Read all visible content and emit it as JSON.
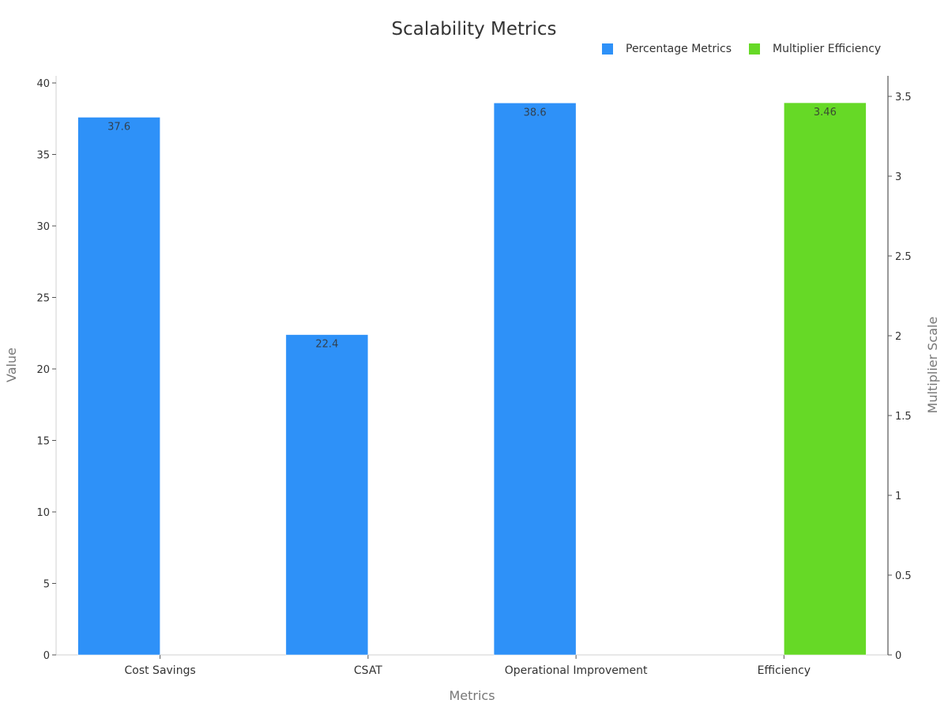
{
  "chart_data": {
    "type": "bar",
    "title": "Scalability Metrics",
    "xlabel": "Metrics",
    "ylabel": "Value",
    "y2label": "Multiplier Scale",
    "categories": [
      "Cost Savings",
      "CSAT",
      "Operational Improvement",
      "Efficiency"
    ],
    "series": [
      {
        "name": "Percentage Metrics",
        "axis": "left",
        "color": "#2e91f8",
        "values": [
          37.6,
          22.4,
          38.6,
          null
        ]
      },
      {
        "name": "Multiplier Efficiency",
        "axis": "right",
        "color": "#66d926",
        "values": [
          null,
          null,
          null,
          3.46
        ]
      }
    ],
    "ylim": [
      0,
      40
    ],
    "y2lim": [
      0,
      3.6
    ],
    "yticks": [
      0,
      5,
      10,
      15,
      20,
      25,
      30,
      35,
      40
    ],
    "y2ticks": [
      0,
      0.5,
      1,
      1.5,
      2,
      2.5,
      3,
      3.5
    ],
    "grid": false,
    "legend_position": "top-right"
  },
  "labels": {
    "title": "Scalability Metrics",
    "xlabel": "Metrics",
    "ylabel": "Value",
    "y2label": "Multiplier Scale",
    "legend": [
      "Percentage Metrics",
      "Multiplier Efficiency"
    ]
  }
}
